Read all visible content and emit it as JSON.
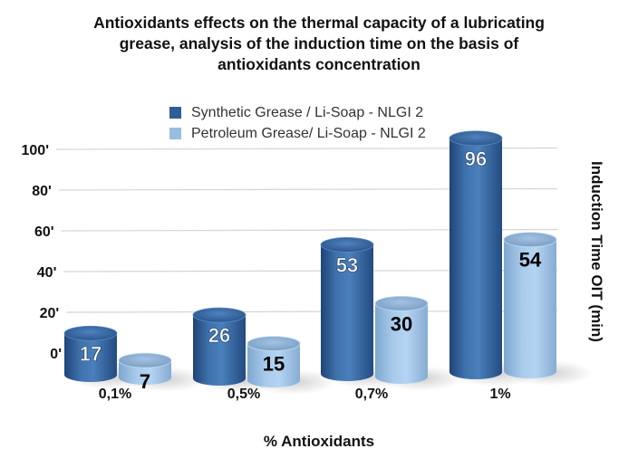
{
  "chart_data": {
    "type": "bar",
    "style": "3d-cylinder",
    "title": "Antioxidants effects on the thermal capacity of a lubricating grease, analysis of the induction time on the basis of antioxidants concentration",
    "title_lines": [
      "Antioxidants effects on the thermal capacity of a lubricating",
      "grease, analysis of the induction time on the basis of",
      "antioxidants concentration"
    ],
    "xlabel": "% Antioxidants",
    "ylabel": "Induction Time OIT (min)",
    "categories": [
      "0,1%",
      "0,5%",
      "0,7%",
      "1%"
    ],
    "series": [
      {
        "name": "Synthetic Grease / Li-Soap - NLGI 2",
        "color": "#2f5d96",
        "label_color": "#ffffff",
        "values": [
          17,
          26,
          53,
          96
        ]
      },
      {
        "name": "Petroleum Grease/ Li-Soap - NLGI 2",
        "color": "#98bde0",
        "label_color": "#000000",
        "values": [
          7,
          15,
          30,
          54
        ]
      }
    ],
    "yticks": [
      "0'",
      "20'",
      "40'",
      "60'",
      "80'",
      "100'"
    ],
    "ytick_values": [
      0,
      20,
      40,
      60,
      80,
      100
    ],
    "ylim": [
      0,
      100
    ],
    "grid": true,
    "legend_position": "top-center",
    "ylabel_position": "right"
  }
}
